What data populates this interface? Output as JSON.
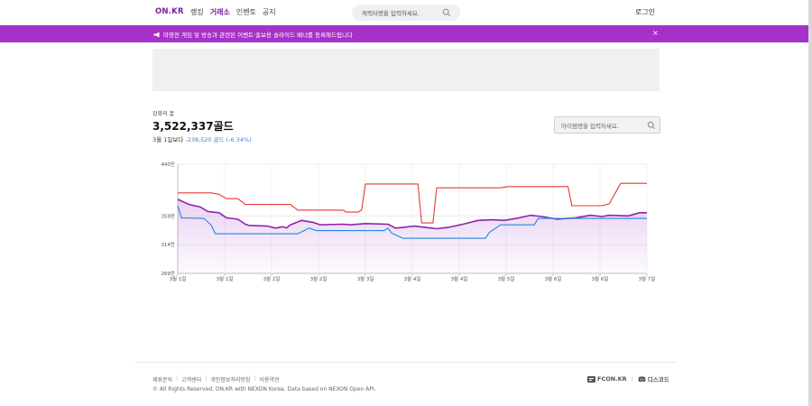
{
  "header": {
    "logo": "ON.KR",
    "nav": [
      {
        "label": "랭킹",
        "active": false
      },
      {
        "label": "거래소",
        "active": true
      },
      {
        "label": "인벤토",
        "active": false
      },
      {
        "label": "공지",
        "active": false
      }
    ],
    "search_placeholder": "캐릭터명을 입력하세요.",
    "login_label": "로그인"
  },
  "banner": {
    "text": "마영전 게임 및 방송과 관련된 이벤트·홍보용 슬라이드 배너를 등록해드립니다",
    "close_label": "×"
  },
  "item": {
    "name": "강화의 꿀",
    "price": "3,522,337골드",
    "change_prefix": "3월 1일보다",
    "change_delta": "-238,520 골드 (-6.34%)",
    "search_placeholder": "아이템명을 입력하세요."
  },
  "chart_data": {
    "type": "line",
    "yticks": [
      "440만",
      "359만",
      "314만",
      "269만"
    ],
    "yvalues": [
      440,
      359,
      314,
      269
    ],
    "ylim": [
      269,
      440
    ],
    "xticks": [
      "3월 1일",
      "3월 1일",
      "3월 2일",
      "3월 2일",
      "3월 3일",
      "3월 4일",
      "3월 4일",
      "3월 5일",
      "3월 6일",
      "3월 6일",
      "3월 7일"
    ],
    "colors": {
      "max": "#e53935",
      "avg": "#8e24aa",
      "min": "#1e88e5",
      "fill": "#b561d6"
    },
    "series": [
      {
        "key": "max",
        "values": [
          [
            0,
            395
          ],
          [
            9,
            395
          ],
          [
            11,
            393
          ],
          [
            13,
            386
          ],
          [
            16,
            386
          ],
          [
            18,
            377
          ],
          [
            30,
            377
          ],
          [
            32,
            368
          ],
          [
            44,
            368
          ],
          [
            45,
            365
          ],
          [
            48,
            365
          ],
          [
            49,
            368
          ],
          [
            50,
            409
          ],
          [
            64,
            409
          ],
          [
            65,
            348
          ],
          [
            68,
            348
          ],
          [
            69,
            403
          ],
          [
            86,
            403
          ],
          [
            88,
            405
          ],
          [
            104,
            405
          ],
          [
            105,
            375
          ],
          [
            113,
            375
          ],
          [
            115,
            378
          ],
          [
            118,
            410
          ],
          [
            125,
            410
          ]
        ]
      },
      {
        "key": "avg",
        "values": [
          [
            0,
            385
          ],
          [
            3,
            377
          ],
          [
            6,
            373
          ],
          [
            8,
            366
          ],
          [
            11,
            364
          ],
          [
            13,
            356
          ],
          [
            16,
            354
          ],
          [
            18,
            346
          ],
          [
            19,
            344
          ],
          [
            24,
            343
          ],
          [
            26,
            340
          ],
          [
            28,
            342
          ],
          [
            29,
            340
          ],
          [
            30,
            345
          ],
          [
            33,
            352
          ],
          [
            36,
            349
          ],
          [
            38,
            345
          ],
          [
            44,
            346
          ],
          [
            46,
            345
          ],
          [
            50,
            347
          ],
          [
            56,
            346
          ],
          [
            58,
            340
          ],
          [
            60,
            341
          ],
          [
            63,
            343
          ],
          [
            66,
            341
          ],
          [
            69,
            339
          ],
          [
            72,
            341
          ],
          [
            76,
            346
          ],
          [
            80,
            352
          ],
          [
            84,
            353
          ],
          [
            87,
            352
          ],
          [
            91,
            356
          ],
          [
            94,
            360
          ],
          [
            97,
            358
          ],
          [
            101,
            354
          ],
          [
            106,
            356
          ],
          [
            110,
            360
          ],
          [
            113,
            358
          ],
          [
            115,
            360
          ],
          [
            120,
            359
          ],
          [
            123,
            364
          ],
          [
            125,
            364
          ]
        ]
      },
      {
        "key": "min",
        "values": [
          [
            0,
            375
          ],
          [
            1,
            356
          ],
          [
            7,
            355
          ],
          [
            9,
            344
          ],
          [
            10,
            331
          ],
          [
            32,
            331
          ],
          [
            35,
            340
          ],
          [
            37,
            336
          ],
          [
            55,
            336
          ],
          [
            56,
            340
          ],
          [
            57,
            332
          ],
          [
            60,
            324
          ],
          [
            64,
            324
          ],
          [
            82,
            324
          ],
          [
            83,
            333
          ],
          [
            86,
            345
          ],
          [
            95,
            345
          ],
          [
            96,
            355
          ],
          [
            125,
            355
          ]
        ]
      }
    ]
  },
  "footer": {
    "links": [
      "제휴문의",
      "고객센터",
      "개인정보처리방침",
      "이용약관"
    ],
    "copyright": "© All Rights Reserved. ON.KR with NEXON Korea. Data based on NEXON Open API.",
    "fcon_label": "FCON.KR",
    "discord_label": "디스코드"
  }
}
